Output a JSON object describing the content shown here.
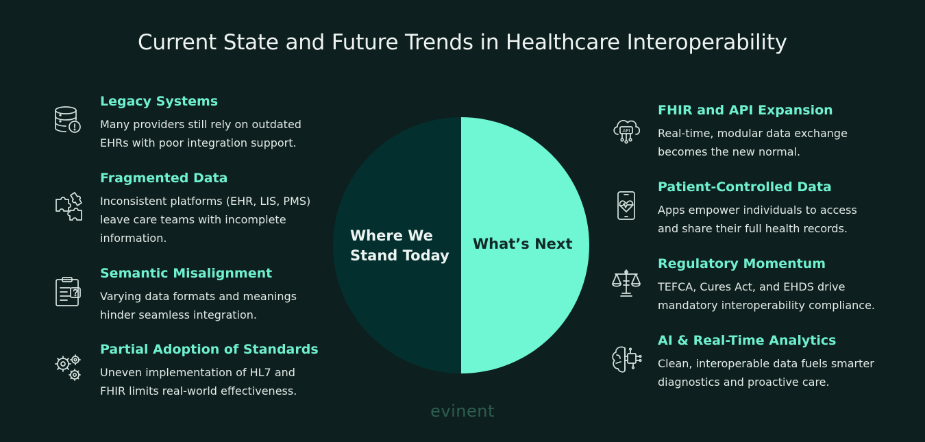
{
  "title": "Current State and Future Trends in Healthcare Interoperability",
  "left_items": [
    {
      "icon": "database-warning-icon",
      "heading": "Legacy Systems",
      "desc": "Many providers still rely on outdated EHRs with poor integration support."
    },
    {
      "icon": "puzzle-pieces-icon",
      "heading": "Fragmented Data",
      "desc": "Inconsistent platforms (EHR, LIS, PMS) leave care teams with incomplete information."
    },
    {
      "icon": "clipboard-question-icon",
      "heading": "Semantic Misalignment",
      "desc": "Varying data formats and meanings hinder seamless integration."
    },
    {
      "icon": "gears-icon",
      "heading": "Partial Adoption of Standards",
      "desc": "Uneven implementation of HL7 and FHIR limits real-world effectiveness."
    }
  ],
  "right_items": [
    {
      "icon": "cloud-api-icon",
      "heading": "FHIR and API Expansion",
      "desc": "Real-time, modular data exchange becomes the new normal."
    },
    {
      "icon": "phone-heart-icon",
      "heading": "Patient-Controlled Data",
      "desc": "Apps empower individuals to access and share their full health records."
    },
    {
      "icon": "scales-icon",
      "heading": "Regulatory Momentum",
      "desc": "TEFCA, Cures Act, and EHDS drive mandatory interoperability compliance."
    },
    {
      "icon": "brain-circuit-icon",
      "heading": "AI & Real-Time Analytics",
      "desc": "Clean, interoperable data fuels smarter diagnostics and proactive care."
    }
  ],
  "circle": {
    "left_label": "Where We Stand Today",
    "right_label": "What’s Next",
    "left_color": "#03302f",
    "right_color": "#6ff7d4"
  },
  "brand": "evinent",
  "colors": {
    "background": "#0d1f1e",
    "accent": "#6ff0cf"
  }
}
